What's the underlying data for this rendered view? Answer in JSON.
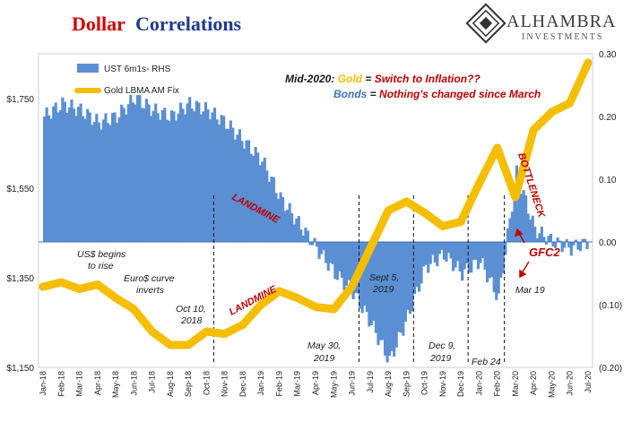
{
  "title": {
    "part1": "Dollar",
    "part2": "Correlations",
    "color1": "#d40000",
    "color2": "#1f3a93"
  },
  "logo": {
    "name": "ALHAMBRA",
    "sub": "INVESTMENTS"
  },
  "legend": [
    {
      "label": "UST 6m1s- RHS",
      "color": "#5b8fd4"
    },
    {
      "label": "Gold LBMA AM Fix",
      "color": "#f5be00"
    }
  ],
  "callout": {
    "line1": {
      "prefix": "Mid-2020: ",
      "key": "Gold",
      "eq": " = ",
      "value": "Switch to Inflation??"
    },
    "line2": {
      "key": "Bonds",
      "eq": " = ",
      "value": "Nothing's changed since March"
    }
  },
  "annotations": [
    {
      "text": "US$ begins",
      "style": "note"
    },
    {
      "text": "to rise",
      "style": "note"
    },
    {
      "text": "Euro$ curve",
      "style": "note"
    },
    {
      "text": "inverts",
      "style": "note"
    },
    {
      "text": "Oct 10,",
      "style": "note"
    },
    {
      "text": "2018",
      "style": "note"
    },
    {
      "text": "LANDMINE",
      "style": "red"
    },
    {
      "text": "LANDMINE",
      "style": "red"
    },
    {
      "text": "May 30,",
      "style": "note"
    },
    {
      "text": "2019",
      "style": "note"
    },
    {
      "text": "Sept 5,",
      "style": "note"
    },
    {
      "text": "2019",
      "style": "note"
    },
    {
      "text": "Dec 9,",
      "style": "note"
    },
    {
      "text": "2019",
      "style": "note"
    },
    {
      "text": "Feb 24",
      "style": "note"
    },
    {
      "text": "BOTTLENECK",
      "style": "red"
    },
    {
      "text": "GFC2",
      "style": "red"
    },
    {
      "text": "Mar 19",
      "style": "note"
    }
  ],
  "chart_data": {
    "type": "area",
    "title": "Dollar Correlations",
    "x_labels": [
      "Jan-18",
      "Feb-18",
      "Mar-18",
      "Apr-18",
      "May-18",
      "Jun-18",
      "Jul-18",
      "Aug-18",
      "Sep-18",
      "Oct-18",
      "Nov-18",
      "Dec-18",
      "Jan-19",
      "Feb-19",
      "Mar-19",
      "Apr-19",
      "May-19",
      "Jun-19",
      "Jul-19",
      "Aug-19",
      "Sep-19",
      "Oct-19",
      "Nov-19",
      "Dec-19",
      "Jan-20",
      "Feb-20",
      "Mar-20",
      "Apr-20",
      "May-20",
      "Jun-20",
      "Jul-20"
    ],
    "y_left": {
      "ticks": [
        "$1,150",
        "$1,350",
        "$1,550",
        "$1,750"
      ],
      "range": [
        1150,
        1850
      ]
    },
    "y_right": {
      "ticks": [
        "0.30",
        "0.20",
        "0.10",
        "0.00",
        "(0.10)",
        "(0.20)"
      ],
      "range": [
        -0.2,
        0.3
      ]
    },
    "series": [
      {
        "name": "UST 6m1s- RHS",
        "axis": "right",
        "kind": "area",
        "values": [
          0.2,
          0.22,
          0.21,
          0.19,
          0.2,
          0.23,
          0.21,
          0.2,
          0.22,
          0.21,
          0.19,
          0.16,
          0.13,
          0.07,
          0.03,
          -0.01,
          -0.05,
          -0.08,
          -0.13,
          -0.19,
          -0.12,
          -0.04,
          -0.02,
          -0.05,
          -0.03,
          -0.09,
          0.11,
          0.02,
          0.0,
          -0.01,
          0.0
        ]
      },
      {
        "name": "Gold LBMA AM Fix",
        "axis": "left",
        "kind": "line",
        "values": [
          1330,
          1340,
          1325,
          1335,
          1305,
          1280,
          1230,
          1200,
          1200,
          1230,
          1225,
          1245,
          1290,
          1320,
          1305,
          1285,
          1280,
          1330,
          1415,
          1500,
          1520,
          1495,
          1465,
          1475,
          1560,
          1640,
          1530,
          1680,
          1720,
          1740,
          1830
        ]
      }
    ],
    "markers": [
      "Oct-18",
      "Jun-19",
      "Sep-19",
      "Dec-19",
      "Feb-20"
    ]
  }
}
